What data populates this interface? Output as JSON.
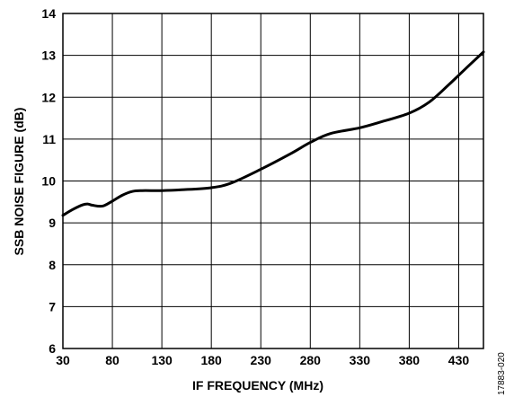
{
  "chart_data": {
    "type": "line",
    "title": "",
    "xlabel": "IF FREQUENCY (MHz)",
    "ylabel": "SSB NOISE FIGURE (dB)",
    "xlim": [
      30,
      455
    ],
    "ylim": [
      6,
      14
    ],
    "x_ticks": [
      30,
      80,
      130,
      180,
      230,
      280,
      330,
      380,
      430
    ],
    "y_ticks": [
      6,
      7,
      8,
      9,
      10,
      11,
      12,
      13,
      14
    ],
    "grid": true,
    "legend": "none",
    "series": [
      {
        "color": "#000000",
        "x": [
          30,
          40,
          50,
          55,
          60,
          70,
          80,
          90,
          100,
          110,
          130,
          150,
          180,
          200,
          230,
          260,
          280,
          300,
          330,
          350,
          380,
          400,
          420,
          440,
          455
        ],
        "y": [
          9.18,
          9.32,
          9.43,
          9.45,
          9.42,
          9.4,
          9.52,
          9.66,
          9.75,
          9.77,
          9.77,
          9.79,
          9.84,
          9.95,
          10.28,
          10.65,
          10.92,
          11.13,
          11.27,
          11.4,
          11.62,
          11.88,
          12.3,
          12.75,
          13.08
        ]
      }
    ]
  },
  "figure_id": "17883-020"
}
